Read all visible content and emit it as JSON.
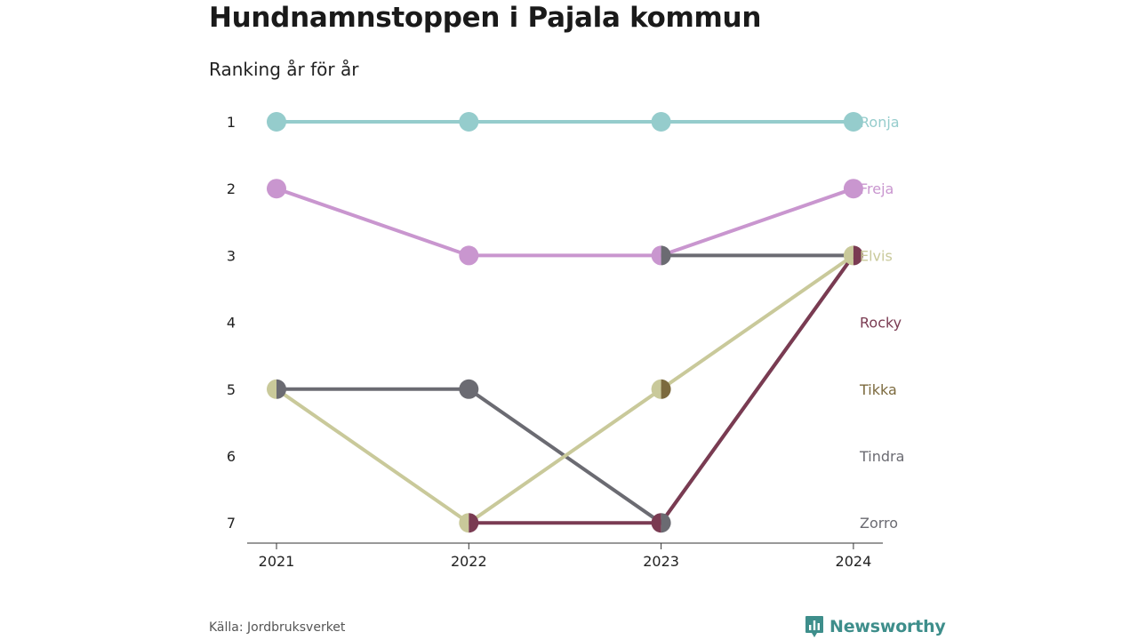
{
  "chart_data": {
    "type": "line",
    "title": "Hundnamnstoppen i Pajala kommun",
    "subtitle": "Ranking år för år",
    "x": [
      "2021",
      "2022",
      "2023",
      "2024"
    ],
    "y_ticks": [
      1,
      2,
      3,
      4,
      5,
      6,
      7
    ],
    "y_range": [
      1,
      7
    ],
    "y_inverted": true,
    "grid": false,
    "legend": "end-labels-right",
    "series": [
      {
        "name": "Zorro",
        "color": "#6b6b72",
        "values": [
          5,
          5,
          7,
          3
        ]
      },
      {
        "name": "Tindra",
        "color": "#6b6b72",
        "values": [
          null,
          null,
          3,
          3
        ]
      },
      {
        "name": "Tikka",
        "color": "#7c6a3e",
        "values": [
          null,
          null,
          5,
          null
        ]
      },
      {
        "name": "Rocky",
        "color": "#7a3b52",
        "values": [
          null,
          7,
          7,
          3
        ]
      },
      {
        "name": "Elvis",
        "color": "#c9c99a",
        "values": [
          5,
          7,
          5,
          3
        ]
      },
      {
        "name": "Freja",
        "color": "#c996cf",
        "values": [
          2,
          3,
          3,
          2
        ]
      },
      {
        "name": "Ronja",
        "color": "#95cccc",
        "values": [
          1,
          1,
          1,
          1
        ]
      }
    ],
    "label_colors": {
      "Ronja": "#95cccc",
      "Freja": "#c996cf",
      "Elvis": "#c9c99a",
      "Rocky": "#7a3b52",
      "Tikka": "#7c6a3e",
      "Tindra": "#6b6b72",
      "Zorro": "#6b6b72"
    },
    "end_labels": [
      {
        "name": "Ronja",
        "rank": 1
      },
      {
        "name": "Freja",
        "rank": 2
      },
      {
        "name": "Elvis",
        "rank": 3
      },
      {
        "name": "Rocky",
        "rank": 4
      },
      {
        "name": "Tikka",
        "rank": 5
      },
      {
        "name": "Tindra",
        "rank": 6
      },
      {
        "name": "Zorro",
        "rank": 7
      }
    ]
  },
  "footer": {
    "source": "Källa: Jordbruksverket",
    "brand": "Newsworthy",
    "brand_color": "#3e8e8b",
    "brand_icon": "bar-chart-speech-bubble-icon"
  }
}
